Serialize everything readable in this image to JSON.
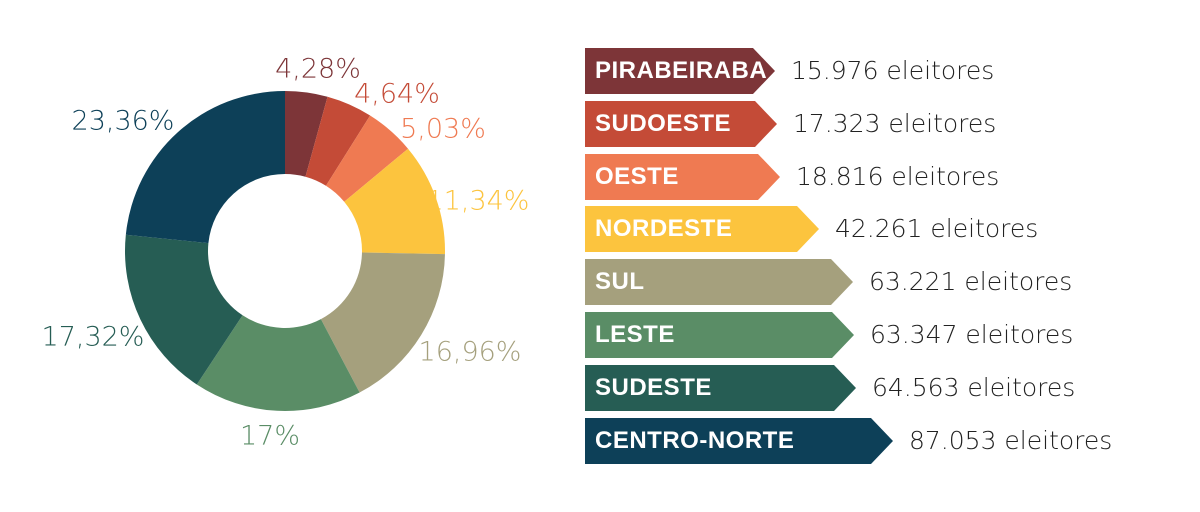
{
  "chart_data": {
    "type": "pie",
    "variant": "donut",
    "slices": [
      {
        "label": "PIRABEIRABA",
        "percent_label": "4,28%",
        "value": 4.28,
        "color": "#7d3538",
        "voters_label": "15.976",
        "voters": 15976
      },
      {
        "label": "SUDOESTE",
        "percent_label": "4,64%",
        "value": 4.64,
        "color": "#c44b37",
        "voters_label": "17.323",
        "voters": 17323
      },
      {
        "label": "OESTE",
        "percent_label": "5,03%",
        "value": 5.03,
        "color": "#ef7a52",
        "voters_label": "18.816",
        "voters": 18816
      },
      {
        "label": "NORDESTE",
        "percent_label": "11,34%",
        "value": 11.34,
        "color": "#fcc43e",
        "voters_label": "42.261",
        "voters": 42261
      },
      {
        "label": "SUL",
        "percent_label": "16,96%",
        "value": 16.96,
        "color": "#a5a07d",
        "voters_label": "63.221",
        "voters": 63221
      },
      {
        "label": "LESTE",
        "percent_label": "17%",
        "value": 17.0,
        "color": "#5a8d66",
        "voters_label": "63.347",
        "voters": 63347
      },
      {
        "label": "SUDESTE",
        "percent_label": "17,32%",
        "value": 17.32,
        "color": "#265d54",
        "voters_label": "64.563",
        "voters": 64563
      },
      {
        "label": "CENTRO-NORTE",
        "percent_label": "23,36%",
        "value": 23.36,
        "color": "#0d4058",
        "voters_label": "87.053",
        "voters": 87053
      }
    ],
    "unit_label": "eleitores"
  }
}
